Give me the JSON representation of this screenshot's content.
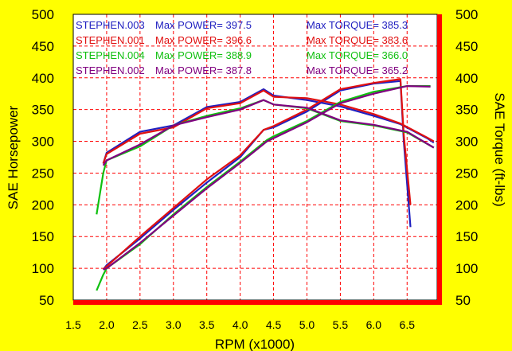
{
  "chart_data": {
    "type": "line",
    "xlabel": "RPM (x1000)",
    "ylabel_left": "SAE Horsepower",
    "ylabel_right": "SAE Torque (ft-lbs)",
    "xlim": [
      1.5,
      6.95
    ],
    "ylim": [
      50,
      500
    ],
    "x_ticks": [
      "1.5",
      "2.0",
      "2.5",
      "3.0",
      "3.5",
      "4.0",
      "4.5",
      "5.0",
      "5.5",
      "6.0",
      "6.5"
    ],
    "y_ticks": [
      "50",
      "100",
      "150",
      "200",
      "250",
      "300",
      "350",
      "400",
      "450",
      "500"
    ],
    "grid": true,
    "legend_placement": "top-left",
    "colors": {
      "background": "#ffff00",
      "plot_background": "#ffffff",
      "grid": "#ff0000",
      "axis_bar": "#ff0000",
      "text": "#000000"
    },
    "series": [
      {
        "name": "STEPHEN.003",
        "max_power_label": "Max POWER= 397.5",
        "max_torque_label": "Max TORQUE= 385.3",
        "color": "#2020c0",
        "power": {
          "x": [
            1.95,
            2.0,
            2.5,
            3.0,
            3.5,
            4.0,
            4.35,
            4.5,
            5.0,
            5.5,
            6.0,
            6.4,
            6.45,
            6.55
          ],
          "y": [
            98,
            105,
            147,
            192,
            235,
            275,
            318,
            322,
            347,
            380,
            391,
            395,
            300,
            165
          ]
        },
        "torque": {
          "x": [
            1.95,
            2.0,
            2.5,
            3.0,
            3.5,
            4.0,
            4.35,
            4.5,
            5.0,
            5.5,
            6.0,
            6.4,
            6.8,
            6.9
          ],
          "y": [
            265,
            282,
            315,
            325,
            354,
            362,
            382,
            372,
            365,
            355,
            340,
            327,
            305,
            298
          ]
        }
      },
      {
        "name": "STEPHEN.001",
        "max_power_label": "Max POWER= 396.6",
        "max_torque_label": "Max TORQUE= 383.6",
        "color": "#e01010",
        "power": {
          "x": [
            1.95,
            2.0,
            2.5,
            3.0,
            3.5,
            4.0,
            4.35,
            4.5,
            5.0,
            5.5,
            6.0,
            6.4,
            6.45,
            6.55
          ],
          "y": [
            98,
            103,
            150,
            195,
            240,
            278,
            318,
            324,
            350,
            382,
            392,
            398,
            310,
            200
          ]
        },
        "torque": {
          "x": [
            1.95,
            2.0,
            2.5,
            3.0,
            3.5,
            4.0,
            4.35,
            4.5,
            5.0,
            5.5,
            6.0,
            6.4,
            6.8,
            6.9
          ],
          "y": [
            265,
            280,
            312,
            322,
            352,
            360,
            380,
            370,
            368,
            358,
            343,
            328,
            306,
            300
          ]
        }
      },
      {
        "name": "STEPHEN.004",
        "max_power_label": "Max POWER= 388.9",
        "max_torque_label": "Max TORQUE= 366.0",
        "color": "#10c010",
        "power": {
          "x": [
            1.85,
            1.95,
            2.0,
            2.5,
            3.0,
            3.5,
            4.0,
            4.4,
            4.5,
            5.0,
            5.5,
            6.0,
            6.5,
            6.85
          ],
          "y": [
            65,
            90,
            100,
            138,
            185,
            228,
            268,
            302,
            308,
            332,
            362,
            378,
            387,
            387
          ]
        },
        "torque": {
          "x": [
            1.85,
            1.95,
            2.0,
            2.5,
            3.0,
            3.5,
            4.0,
            4.35,
            4.5,
            5.0,
            5.5,
            6.0,
            6.5,
            6.9
          ],
          "y": [
            185,
            250,
            270,
            292,
            325,
            340,
            352,
            365,
            358,
            352,
            332,
            325,
            314,
            290
          ]
        }
      },
      {
        "name": "STEPHEN.002",
        "max_power_label": "Max POWER= 387.8",
        "max_torque_label": "Max TORQUE= 365.2",
        "color": "#800080",
        "power": {
          "x": [
            1.95,
            2.0,
            2.5,
            3.0,
            3.5,
            4.0,
            4.4,
            4.5,
            5.0,
            5.5,
            6.0,
            6.5,
            6.85
          ],
          "y": [
            98,
            100,
            140,
            183,
            226,
            266,
            300,
            305,
            330,
            360,
            375,
            387,
            386
          ]
        },
        "torque": {
          "x": [
            1.95,
            2.0,
            2.5,
            3.0,
            3.5,
            4.0,
            4.35,
            4.5,
            5.0,
            5.5,
            6.0,
            6.5,
            6.9
          ],
          "y": [
            262,
            270,
            295,
            325,
            338,
            350,
            365,
            358,
            353,
            333,
            326,
            315,
            290
          ]
        }
      }
    ]
  }
}
